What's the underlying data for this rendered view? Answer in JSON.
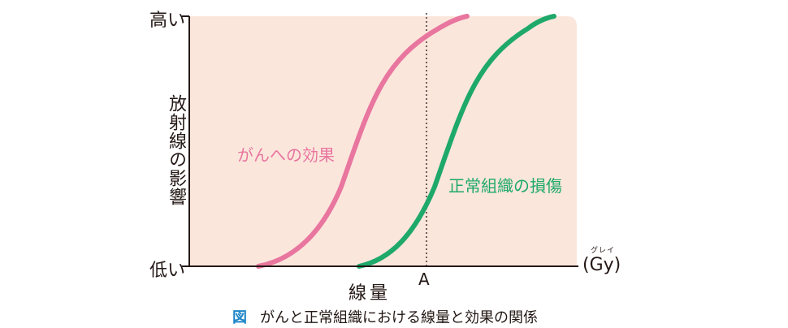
{
  "colors": {
    "plot_background": "#fbe6dc",
    "cancer_curve": "#e8769f",
    "normal_curve": "#1ea96a",
    "axis": "#231815",
    "caption_mark": "#1e86c8"
  },
  "axes": {
    "y_high": "高い",
    "y_low": "低い",
    "y_title": "放射線の影響",
    "x_title": "線量",
    "x_marker": "A",
    "x_unit": "(Gy)",
    "x_unit_ruby": "グレイ",
    "marker_line_style": "dotted"
  },
  "curves": [
    {
      "id": "cancer",
      "label": "がんへの効果",
      "shape": "sigmoid"
    },
    {
      "id": "normal",
      "label": "正常組織の損傷",
      "shape": "sigmoid"
    }
  ],
  "caption": {
    "mark": "図",
    "text": "がんと正常組織における線量と効果の関係"
  }
}
